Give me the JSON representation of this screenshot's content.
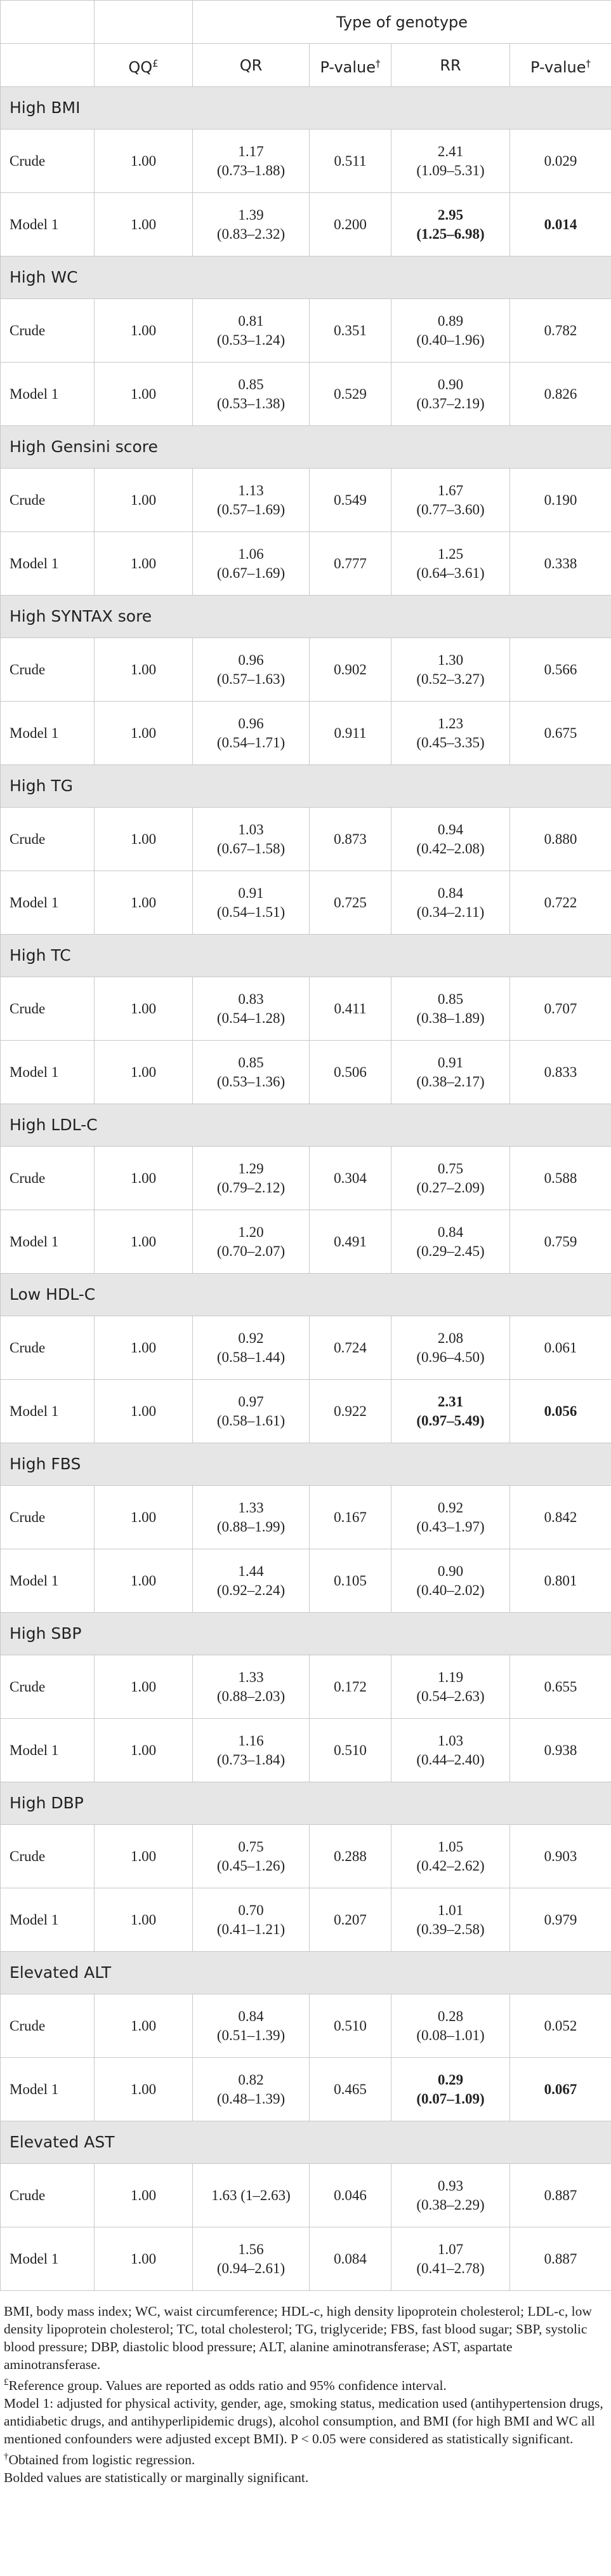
{
  "table": {
    "header": {
      "span_title": "Type of genotype",
      "columns": [
        {
          "text": "QQ",
          "mark": "£"
        },
        {
          "text": "QR"
        },
        {
          "text": "P-value",
          "mark": "†"
        },
        {
          "text": "RR"
        },
        {
          "text": "P-value",
          "mark": "†"
        }
      ]
    },
    "groups": [
      {
        "name": "High BMI",
        "rows": [
          {
            "label": "Crude",
            "qq": "1.00",
            "qr": "1.17",
            "qr_ci": "(0.73–1.88)",
            "p1": "0.511",
            "rr": "2.41",
            "rr_ci": "(1.09–5.31)",
            "p2": "0.029"
          },
          {
            "label": "Model 1",
            "qq": "1.00",
            "qr": "1.39",
            "qr_ci": "(0.83–2.32)",
            "p1": "0.200",
            "rr": "2.95",
            "rr_ci": "(1.25–6.98)",
            "p2": "0.014",
            "bold": true
          }
        ]
      },
      {
        "name": "High WC",
        "rows": [
          {
            "label": "Crude",
            "qq": "1.00",
            "qr": "0.81",
            "qr_ci": "(0.53–1.24)",
            "p1": "0.351",
            "rr": "0.89",
            "rr_ci": "(0.40–1.96)",
            "p2": "0.782"
          },
          {
            "label": "Model 1",
            "qq": "1.00",
            "qr": "0.85",
            "qr_ci": "(0.53–1.38)",
            "p1": "0.529",
            "rr": "0.90",
            "rr_ci": "(0.37–2.19)",
            "p2": "0.826"
          }
        ]
      },
      {
        "name": "High Gensini score",
        "rows": [
          {
            "label": "Crude",
            "qq": "1.00",
            "qr": "1.13",
            "qr_ci": "(0.57–1.69)",
            "p1": "0.549",
            "rr": "1.67",
            "rr_ci": "(0.77–3.60)",
            "p2": "0.190"
          },
          {
            "label": "Model 1",
            "qq": "1.00",
            "qr": "1.06",
            "qr_ci": "(0.67–1.69)",
            "p1": "0.777",
            "rr": "1.25",
            "rr_ci": "(0.64–3.61)",
            "p2": "0.338"
          }
        ]
      },
      {
        "name": "High SYNTAX sore",
        "rows": [
          {
            "label": "Crude",
            "qq": "1.00",
            "qr": "0.96",
            "qr_ci": "(0.57–1.63)",
            "p1": "0.902",
            "rr": "1.30",
            "rr_ci": "(0.52–3.27)",
            "p2": "0.566"
          },
          {
            "label": "Model 1",
            "qq": "1.00",
            "qr": "0.96",
            "qr_ci": "(0.54–1.71)",
            "p1": "0.911",
            "rr": "1.23",
            "rr_ci": "(0.45–3.35)",
            "p2": "0.675"
          }
        ]
      },
      {
        "name": "High TG",
        "rows": [
          {
            "label": "Crude",
            "qq": "1.00",
            "qr": "1.03",
            "qr_ci": "(0.67–1.58)",
            "p1": "0.873",
            "rr": "0.94",
            "rr_ci": "(0.42–2.08)",
            "p2": "0.880"
          },
          {
            "label": "Model 1",
            "qq": "1.00",
            "qr": "0.91",
            "qr_ci": "(0.54–1.51)",
            "p1": "0.725",
            "rr": "0.84",
            "rr_ci": "(0.34–2.11)",
            "p2": "0.722"
          }
        ]
      },
      {
        "name": "High TC",
        "rows": [
          {
            "label": "Crude",
            "qq": "1.00",
            "qr": "0.83",
            "qr_ci": "(0.54–1.28)",
            "p1": "0.411",
            "rr": "0.85",
            "rr_ci": "(0.38–1.89)",
            "p2": "0.707"
          },
          {
            "label": "Model 1",
            "qq": "1.00",
            "qr": "0.85",
            "qr_ci": "(0.53–1.36)",
            "p1": "0.506",
            "rr": "0.91",
            "rr_ci": "(0.38–2.17)",
            "p2": "0.833"
          }
        ]
      },
      {
        "name": "High LDL-C",
        "rows": [
          {
            "label": "Crude",
            "qq": "1.00",
            "qr": "1.29",
            "qr_ci": "(0.79–2.12)",
            "p1": "0.304",
            "rr": "0.75",
            "rr_ci": "(0.27–2.09)",
            "p2": "0.588"
          },
          {
            "label": "Model 1",
            "qq": "1.00",
            "qr": "1.20",
            "qr_ci": "(0.70–2.07)",
            "p1": "0.491",
            "rr": "0.84",
            "rr_ci": "(0.29–2.45)",
            "p2": "0.759"
          }
        ]
      },
      {
        "name": "Low HDL-C",
        "rows": [
          {
            "label": "Crude",
            "qq": "1.00",
            "qr": "0.92",
            "qr_ci": "(0.58–1.44)",
            "p1": "0.724",
            "rr": "2.08",
            "rr_ci": "(0.96–4.50)",
            "p2": "0.061"
          },
          {
            "label": "Model 1",
            "qq": "1.00",
            "qr": "0.97",
            "qr_ci": "(0.58–1.61)",
            "p1": "0.922",
            "rr": "2.31",
            "rr_ci": "(0.97–5.49)",
            "p2": "0.056",
            "bold": true
          }
        ]
      },
      {
        "name": "High FBS",
        "rows": [
          {
            "label": "Crude",
            "qq": "1.00",
            "qr": "1.33",
            "qr_ci": "(0.88–1.99)",
            "p1": "0.167",
            "rr": "0.92",
            "rr_ci": "(0.43–1.97)",
            "p2": "0.842"
          },
          {
            "label": "Model 1",
            "qq": "1.00",
            "qr": "1.44",
            "qr_ci": "(0.92–2.24)",
            "p1": "0.105",
            "rr": "0.90",
            "rr_ci": "(0.40–2.02)",
            "p2": "0.801"
          }
        ]
      },
      {
        "name": "High SBP",
        "rows": [
          {
            "label": "Crude",
            "qq": "1.00",
            "qr": "1.33",
            "qr_ci": "(0.88–2.03)",
            "p1": "0.172",
            "rr": "1.19",
            "rr_ci": "(0.54–2.63)",
            "p2": "0.655"
          },
          {
            "label": "Model 1",
            "qq": "1.00",
            "qr": "1.16",
            "qr_ci": "(0.73–1.84)",
            "p1": "0.510",
            "rr": "1.03",
            "rr_ci": "(0.44–2.40)",
            "p2": "0.938"
          }
        ]
      },
      {
        "name": "High DBP",
        "rows": [
          {
            "label": "Crude",
            "qq": "1.00",
            "qr": "0.75",
            "qr_ci": "(0.45–1.26)",
            "p1": "0.288",
            "rr": "1.05",
            "rr_ci": "(0.42–2.62)",
            "p2": "0.903"
          },
          {
            "label": "Model 1",
            "qq": "1.00",
            "qr": "0.70",
            "qr_ci": "(0.41–1.21)",
            "p1": "0.207",
            "rr": "1.01",
            "rr_ci": "(0.39–2.58)",
            "p2": "0.979"
          }
        ]
      },
      {
        "name": "Elevated ALT",
        "rows": [
          {
            "label": "Crude",
            "qq": "1.00",
            "qr": "0.84",
            "qr_ci": "(0.51–1.39)",
            "p1": "0.510",
            "rr": "0.28",
            "rr_ci": "(0.08–1.01)",
            "p2": "0.052"
          },
          {
            "label": "Model 1",
            "qq": "1.00",
            "qr": "0.82",
            "qr_ci": "(0.48–1.39)",
            "p1": "0.465",
            "rr": "0.29",
            "rr_ci": "(0.07–1.09)",
            "p2": "0.067",
            "bold": true
          }
        ]
      },
      {
        "name": "Elevated AST",
        "rows": [
          {
            "label": "Crude",
            "qq": "1.00",
            "qr": "1.63 (1–2.63)",
            "p1": "0.046",
            "rr": "0.93",
            "rr_ci": "(0.38–2.29)",
            "p2": "0.887"
          },
          {
            "label": "Model 1",
            "qq": "1.00",
            "qr": "1.56",
            "qr_ci": "(0.94–2.61)",
            "p1": "0.084",
            "rr": "1.07",
            "rr_ci": "(0.41–2.78)",
            "p2": "0.887"
          }
        ]
      }
    ]
  },
  "footnotes": [
    {
      "text": "BMI, body mass index; WC, waist circumference; HDL-c, high density lipoprotein cholesterol; LDL-c, low density lipoprotein cholesterol; TC, total cholesterol; TG, triglyceride; FBS, fast blood sugar; SBP, systolic blood pressure; DBP, diastolic blood pressure; ALT, alanine aminotransferase; AST, aspartate aminotransferase."
    },
    {
      "mark": "£",
      "text": "Reference group. Values are reported as odds ratio and 95% confidence interval."
    },
    {
      "text": "Model 1: adjusted for physical activity, gender, age, smoking status, medication used (antihypertension drugs, antidiabetic drugs, and antihyperlipidemic drugs), alcohol consumption, and BMI (for high BMI and WC all mentioned confounders were adjusted except BMI). P < 0.05 were considered as statistically significant."
    },
    {
      "mark": "†",
      "text": "Obtained from logistic regression."
    },
    {
      "text": "Bolded values are statistically or marginally significant."
    }
  ]
}
